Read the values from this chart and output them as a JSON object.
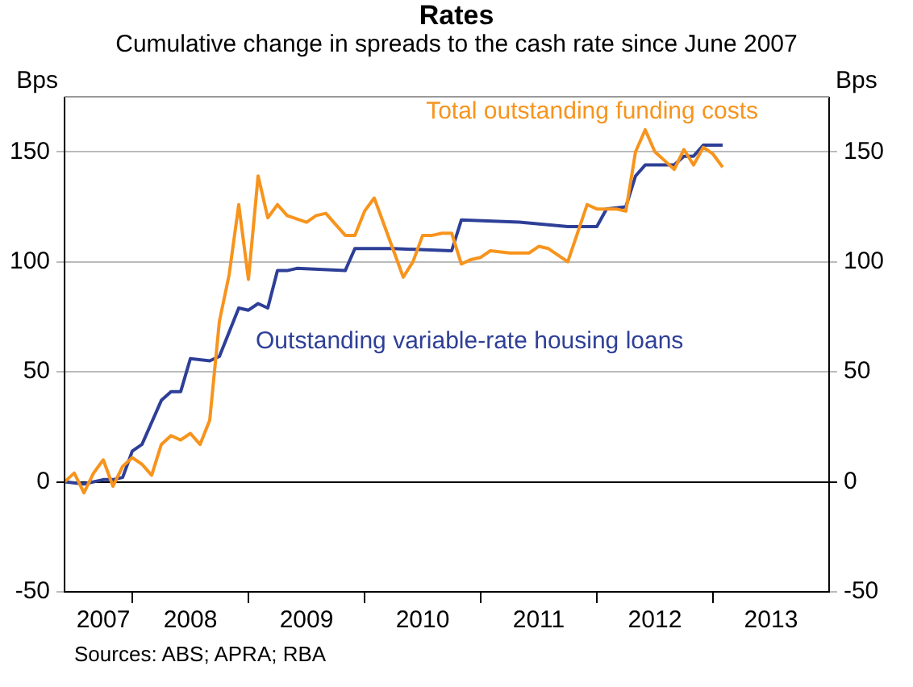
{
  "chart_data": {
    "type": "line",
    "title": "Rates",
    "subtitle": "Cumulative change in spreads to the cash rate since June 2007",
    "ylabel": "Bps",
    "y2label": "Bps",
    "xlim": [
      "2007-06",
      "2014-01"
    ],
    "xticks": [
      {
        "value": "2007-10",
        "label": "2007"
      },
      {
        "value": "2008-01",
        "label": null
      },
      {
        "value": "2008-07",
        "label": "2008"
      },
      {
        "value": "2009-01",
        "label": null
      },
      {
        "value": "2009-07",
        "label": "2009"
      },
      {
        "value": "2010-01",
        "label": null
      },
      {
        "value": "2010-07",
        "label": "2010"
      },
      {
        "value": "2011-01",
        "label": null
      },
      {
        "value": "2011-07",
        "label": "2011"
      },
      {
        "value": "2012-01",
        "label": null
      },
      {
        "value": "2012-07",
        "label": "2012"
      },
      {
        "value": "2013-01",
        "label": null
      },
      {
        "value": "2013-07",
        "label": "2013"
      }
    ],
    "ylim": [
      -50,
      175
    ],
    "yticks": [
      -50,
      0,
      50,
      100,
      150
    ],
    "y2lim": [
      -50,
      175
    ],
    "y2ticks": [
      -50,
      0,
      50,
      100,
      150
    ],
    "grid": "y",
    "series": [
      {
        "name": "Total outstanding funding costs",
        "color": "#f7941d",
        "x": [
          "2007-06",
          "2007-07",
          "2007-08",
          "2007-09",
          "2007-10",
          "2007-11",
          "2007-12",
          "2008-01",
          "2008-02",
          "2008-03",
          "2008-04",
          "2008-05",
          "2008-06",
          "2008-07",
          "2008-08",
          "2008-09",
          "2008-10",
          "2008-11",
          "2008-12",
          "2009-01",
          "2009-02",
          "2009-03",
          "2009-04",
          "2009-05",
          "2009-07",
          "2009-08",
          "2009-09",
          "2009-11",
          "2009-12",
          "2010-01",
          "2010-02",
          "2010-03",
          "2010-05",
          "2010-06",
          "2010-07",
          "2010-08",
          "2010-09",
          "2010-10",
          "2010-11",
          "2010-12",
          "2011-01",
          "2011-02",
          "2011-04",
          "2011-05",
          "2011-06",
          "2011-07",
          "2011-08",
          "2011-10",
          "2011-12",
          "2012-01",
          "2012-03",
          "2012-04",
          "2012-05",
          "2012-06",
          "2012-07",
          "2012-08",
          "2012-09",
          "2012-10",
          "2012-11",
          "2012-12",
          "2013-01",
          "2013-02"
        ],
        "values": [
          0,
          4,
          -5,
          4,
          10,
          -2,
          7,
          11,
          8,
          3,
          17,
          21,
          19,
          22,
          17,
          28,
          73,
          94,
          126,
          92,
          139,
          120,
          126,
          121,
          118,
          121,
          122,
          112,
          112,
          123,
          129,
          117,
          93,
          100,
          112,
          112,
          113,
          113,
          99,
          101,
          102,
          105,
          104,
          104,
          104,
          107,
          106,
          100,
          126,
          124,
          124,
          123,
          150,
          160,
          150,
          146,
          142,
          151,
          144,
          152,
          149,
          143
        ]
      },
      {
        "name": "Outstanding variable-rate housing loans",
        "color": "#2e3f97",
        "x": [
          "2007-06",
          "2007-08",
          "2007-10",
          "2007-11",
          "2007-12",
          "2008-01",
          "2008-02",
          "2008-04",
          "2008-05",
          "2008-06",
          "2008-07",
          "2008-09",
          "2008-10",
          "2008-12",
          "2009-01",
          "2009-02",
          "2009-03",
          "2009-04",
          "2009-05",
          "2009-06",
          "2009-11",
          "2009-12",
          "2010-04",
          "2010-10",
          "2010-11",
          "2011-05",
          "2011-10",
          "2012-01",
          "2012-02",
          "2012-04",
          "2012-05",
          "2012-06",
          "2012-09",
          "2012-10",
          "2012-11",
          "2012-12",
          "2013-02"
        ],
        "values": [
          0,
          -1,
          1,
          1,
          2,
          14,
          17,
          37,
          41,
          41,
          56,
          55,
          57,
          79,
          78,
          81,
          79,
          96,
          96,
          97,
          96,
          106,
          106,
          105,
          119,
          118,
          116,
          116,
          124,
          125,
          139,
          144,
          144,
          148,
          148,
          153,
          153
        ]
      }
    ],
    "annotations": [
      "Sources: ABS; APRA; RBA"
    ]
  }
}
